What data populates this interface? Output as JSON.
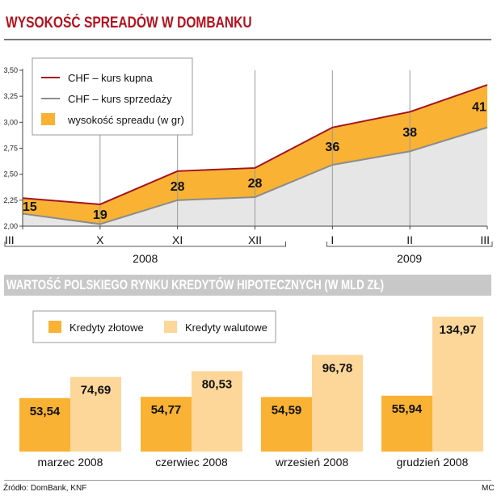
{
  "header": {
    "title1": "WYSOKOŚĆ SPREADÓW W DOMBANKU",
    "title2": "WARTOŚĆ POLSKIEGO RYNKU KREDYTÓW HIPOTECZNYCH (W MLD ZŁ)"
  },
  "footer": {
    "source": "Źródło: DomBank, KNF",
    "credit": "MC"
  },
  "colors": {
    "red": "#a31422",
    "gray": "#8c8c8c",
    "orange": "#f9b233",
    "light": "#fdd79a",
    "area": "#e6e6e6",
    "title": "#b3121e",
    "band": "#c8c8c8"
  },
  "chart_data": [
    {
      "type": "line",
      "title": "WYSOKOŚĆ SPREADÓW W DOMBANKU",
      "categories": [
        "III",
        "X",
        "XI",
        "XII",
        "I",
        "II",
        "III"
      ],
      "year_groups": [
        {
          "label": "2008",
          "categories": [
            "III",
            "X",
            "XI",
            "XII"
          ]
        },
        {
          "label": "2009",
          "categories": [
            "I",
            "II",
            "III"
          ]
        }
      ],
      "y_ticks": [
        "2,00",
        "2,25",
        "2,50",
        "2,75",
        "3,00",
        "3,25",
        "3,50"
      ],
      "ylim": [
        2.0,
        3.5
      ],
      "series": [
        {
          "name": "CHF – kurs kupna",
          "values": [
            2.27,
            2.21,
            2.53,
            2.56,
            2.95,
            3.1,
            3.36
          ]
        },
        {
          "name": "CHF – kurs sprzedaży",
          "values": [
            2.12,
            2.02,
            2.25,
            2.28,
            2.59,
            2.72,
            2.95
          ]
        }
      ],
      "spread": {
        "name": "wysokość spreadu (w gr)",
        "labels": [
          "15",
          "19",
          "28",
          "28",
          "36",
          "38",
          "41"
        ]
      },
      "legend_position": "top-left",
      "grid": "vertical"
    },
    {
      "type": "bar",
      "title": "WARTOŚĆ POLSKIEGO RYNKU KREDYTÓW HIPOTECZNYCH (W MLD ZŁ)",
      "categories": [
        "marzec 2008",
        "czerwiec 2008",
        "wrzesień 2008",
        "grudzień 2008"
      ],
      "series": [
        {
          "name": "Kredyty złotowe",
          "values": [
            53.54,
            54.77,
            54.59,
            55.94
          ],
          "labels": [
            "53,54",
            "54,77",
            "54,59",
            "55,94"
          ]
        },
        {
          "name": "Kredyty walutowe",
          "values": [
            74.69,
            80.53,
            96.78,
            134.97
          ],
          "labels": [
            "74,69",
            "80,53",
            "96,78",
            "134,97"
          ]
        }
      ],
      "ylim": [
        0,
        140
      ],
      "legend_position": "top-left"
    }
  ]
}
